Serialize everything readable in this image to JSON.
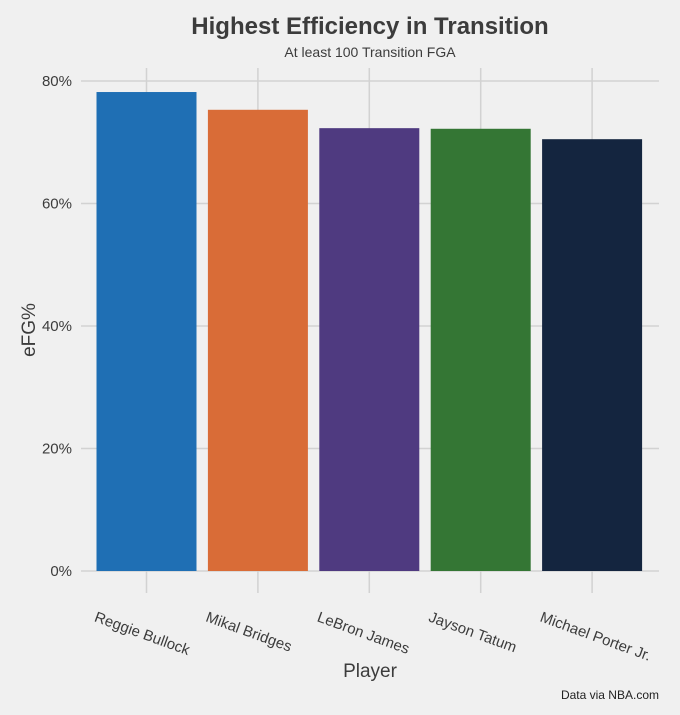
{
  "chart_data": {
    "type": "bar",
    "title": "Highest Efficiency in Transition",
    "subtitle": "At least 100 Transition FGA",
    "xlabel": "Player",
    "ylabel": "eFG%",
    "categories": [
      "Reggie Bullock",
      "Mikal Bridges",
      "LeBron James",
      "Jayson Tatum",
      "Michael Porter Jr."
    ],
    "values": [
      78.2,
      75.3,
      72.3,
      72.2,
      70.5
    ],
    "colors": [
      "#1f6fb4",
      "#d96c37",
      "#4f3a80",
      "#347634",
      "#14253f"
    ],
    "ylim": [
      0,
      80
    ],
    "yticks": [
      0,
      20,
      40,
      60,
      80
    ],
    "ytick_labels": [
      "0%",
      "20%",
      "40%",
      "60%",
      "80%"
    ],
    "grid": true,
    "caption": "Data via NBA.com"
  }
}
